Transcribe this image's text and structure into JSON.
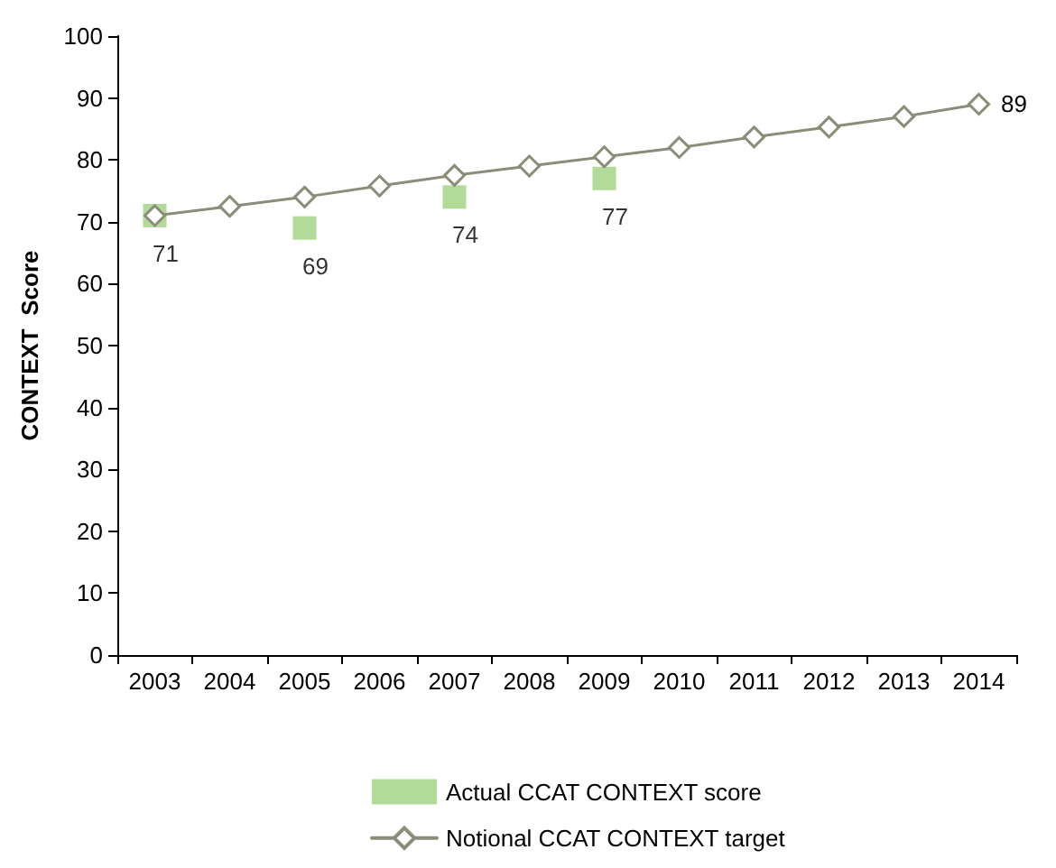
{
  "chart_data": {
    "type": "line",
    "ylabel": "CONTEXT  Score",
    "categories": [
      "2003",
      "2004",
      "2005",
      "2006",
      "2007",
      "2008",
      "2009",
      "2010",
      "2011",
      "2012",
      "2013",
      "2014"
    ],
    "series": [
      {
        "name": "Actual CCAT CONTEXT score",
        "type": "scatter",
        "color": "#9fd17f",
        "marker": "square",
        "values": [
          71,
          null,
          69,
          null,
          74,
          null,
          77,
          null,
          null,
          null,
          null,
          null
        ],
        "value_labels": [
          "71",
          null,
          "69",
          null,
          "74",
          null,
          "77",
          null,
          null,
          null,
          null,
          null
        ]
      },
      {
        "name": "Notional CCAT CONTEXT target",
        "color": "#8c8c78",
        "marker": "diamond",
        "line_style": "solid",
        "values": [
          71,
          72.5,
          74,
          75.8,
          77.5,
          79,
          80.5,
          82,
          83.7,
          85.3,
          87,
          89
        ],
        "value_labels": [
          null,
          null,
          null,
          null,
          null,
          null,
          null,
          null,
          null,
          null,
          null,
          "89"
        ]
      }
    ],
    "ylim": [
      0,
      100
    ],
    "yticks": [
      0,
      10,
      20,
      30,
      40,
      50,
      60,
      70,
      80,
      90,
      100
    ],
    "grid": false,
    "legend": "bottom"
  }
}
